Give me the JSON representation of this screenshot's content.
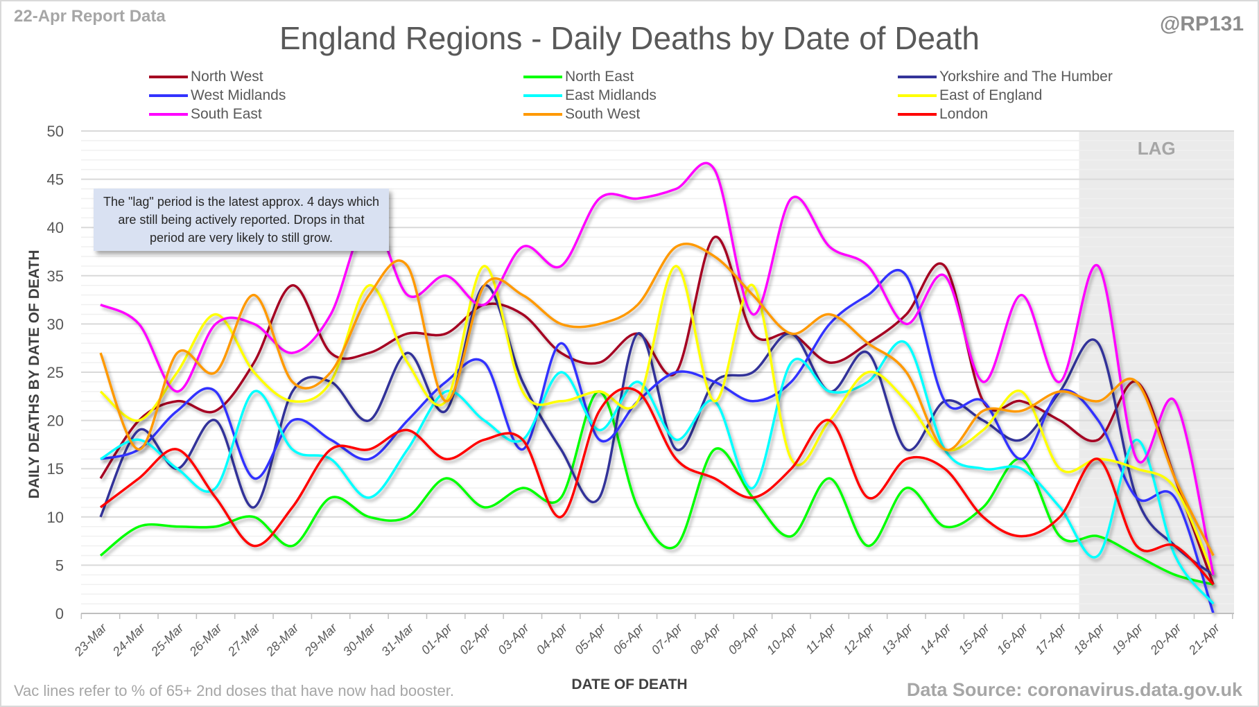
{
  "header": {
    "report_label": "22-Apr Report Data",
    "handle": "@RP131",
    "title": "England Regions - Daily Deaths by Date of Death"
  },
  "annotation": {
    "note": "The \"lag\" period is the latest approx. 4 days which are still being actively reported. Drops in that period are very likely to still grow.",
    "lag_label": "LAG"
  },
  "footer": {
    "left_note": "Vac lines refer to % of 65+ 2nd doses that have now had booster.",
    "source": "Data Source: coronavirus.data.gov.uk"
  },
  "colors": {
    "lag_shade": "#ebebeb",
    "gridline_major": "#d9d9d9",
    "gridline_minor": "#f0f0f0"
  },
  "chart_data": {
    "type": "line",
    "title": "England Regions - Daily Deaths by Date of Death",
    "xlabel": "DATE OF DEATH",
    "ylabel": "DAILY DEATHS BY DATE OF DEATH",
    "ylim": [
      0,
      50
    ],
    "yticks": [
      0,
      5,
      10,
      15,
      20,
      25,
      30,
      35,
      40,
      45,
      50
    ],
    "grid": true,
    "smoothed": true,
    "legend_position": "top",
    "lag_period": [
      "18-Apr",
      "21-Apr"
    ],
    "x": [
      "23-Mar",
      "24-Mar",
      "25-Mar",
      "26-Mar",
      "27-Mar",
      "28-Mar",
      "29-Mar",
      "30-Mar",
      "31-Mar",
      "01-Apr",
      "02-Apr",
      "03-Apr",
      "04-Apr",
      "05-Apr",
      "06-Apr",
      "07-Apr",
      "08-Apr",
      "09-Apr",
      "10-Apr",
      "11-Apr",
      "12-Apr",
      "13-Apr",
      "14-Apr",
      "15-Apr",
      "16-Apr",
      "17-Apr",
      "18-Apr",
      "19-Apr",
      "20-Apr",
      "21-Apr"
    ],
    "series": [
      {
        "name": "North West",
        "color": "#a50021",
        "values": [
          14,
          20,
          22,
          21,
          26,
          34,
          27,
          27,
          29,
          29,
          32,
          31,
          27,
          26,
          29,
          25,
          39,
          29,
          29,
          26,
          28,
          31,
          36,
          22,
          22,
          20,
          18,
          24,
          14,
          3
        ]
      },
      {
        "name": "North East",
        "color": "#00ff00",
        "values": [
          6,
          9,
          9,
          9,
          10,
          7,
          12,
          10,
          10,
          14,
          11,
          13,
          12,
          23,
          11,
          7,
          17,
          12,
          8,
          14,
          7,
          13,
          9,
          11,
          16,
          8,
          8,
          6,
          4,
          3
        ]
      },
      {
        "name": "Yorkshire and The Humber",
        "color": "#333399",
        "values": [
          10,
          19,
          15,
          20,
          11,
          23,
          24,
          20,
          27,
          21,
          34,
          24,
          17,
          12,
          29,
          17,
          24,
          25,
          29,
          23,
          27,
          17,
          22,
          20,
          18,
          23,
          28,
          12,
          7,
          4
        ]
      },
      {
        "name": "West Midlands",
        "color": "#3333ff",
        "values": [
          16,
          17,
          21,
          23,
          14,
          20,
          18,
          16,
          20,
          24,
          26,
          17,
          28,
          18,
          22,
          25,
          24,
          22,
          24,
          30,
          33,
          35,
          22,
          22,
          16,
          23,
          20,
          12,
          12,
          0
        ]
      },
      {
        "name": "East Midlands",
        "color": "#00ffff",
        "values": [
          16,
          18,
          15,
          13,
          23,
          17,
          16,
          12,
          17,
          23,
          20,
          18,
          25,
          19,
          24,
          18,
          22,
          13,
          26,
          23,
          24,
          28,
          17,
          15,
          15,
          11,
          6,
          18,
          6,
          1
        ]
      },
      {
        "name": "East of England",
        "color": "#ffff00",
        "values": [
          23,
          20,
          25,
          31,
          25,
          22,
          24,
          34,
          26,
          22,
          36,
          23,
          22,
          23,
          22,
          36,
          22,
          34,
          16,
          20,
          25,
          22,
          17,
          19,
          23,
          15,
          16,
          15,
          13,
          4
        ]
      },
      {
        "name": "South East",
        "color": "#ff00ff",
        "values": [
          32,
          30,
          23,
          30,
          30,
          27,
          31,
          41,
          33,
          35,
          32,
          38,
          36,
          43,
          43,
          44,
          46,
          31,
          43,
          38,
          36,
          30,
          35,
          24,
          33,
          24,
          36,
          16,
          22,
          4
        ]
      },
      {
        "name": "South West",
        "color": "#ff9900",
        "values": [
          27,
          17,
          27,
          25,
          33,
          24,
          25,
          33,
          36,
          22,
          34,
          33,
          30,
          30,
          32,
          38,
          37,
          33,
          29,
          31,
          28,
          25,
          17,
          21,
          21,
          23,
          22,
          24,
          14,
          6
        ]
      },
      {
        "name": "London",
        "color": "#ff0000",
        "values": [
          11,
          14,
          17,
          12,
          7,
          11,
          17,
          17,
          19,
          16,
          18,
          18,
          10,
          21,
          23,
          16,
          14,
          12,
          15,
          20,
          12,
          16,
          15,
          10,
          8,
          10,
          16,
          7,
          7,
          3
        ]
      }
    ]
  }
}
